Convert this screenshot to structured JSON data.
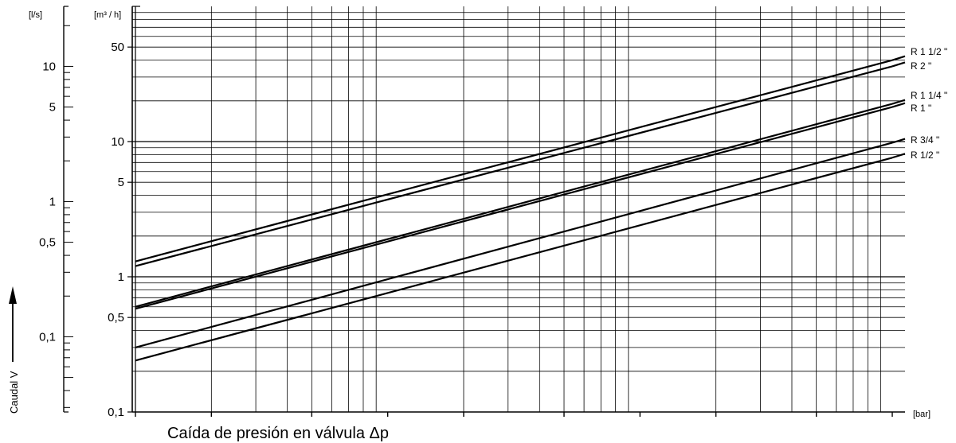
{
  "chart_data": {
    "type": "line",
    "title": "",
    "xlabel": "Caída de presión en válvula Δp",
    "ylabel": "Caudal V",
    "x_unit": "[bar]",
    "y_unit": "[m³ / h]",
    "y2_unit": "[l/s]",
    "x_scale": "log",
    "y_scale": "log",
    "xlim": [
      0.01,
      10
    ],
    "ylim": [
      0.1,
      100
    ],
    "grid": true,
    "y_ticks": [
      {
        "value": 0.1,
        "label": "0,1"
      },
      {
        "value": 0.5,
        "label": "0,5"
      },
      {
        "value": 1,
        "label": "1"
      },
      {
        "value": 5,
        "label": "5"
      },
      {
        "value": 10,
        "label": "10"
      },
      {
        "value": 50,
        "label": "50"
      }
    ],
    "y2_ticks": [
      {
        "value": 0.1,
        "label": "0,1"
      },
      {
        "value": 0.5,
        "label": "0,5"
      },
      {
        "value": 1,
        "label": "1"
      },
      {
        "value": 5,
        "label": "5"
      },
      {
        "value": 10,
        "label": "10"
      }
    ],
    "series": [
      {
        "name": "R 1 1/2 \"",
        "x": [
          0.01,
          10
        ],
        "y": [
          1.3,
          40
        ]
      },
      {
        "name": "R 2 \"",
        "x": [
          0.01,
          10
        ],
        "y": [
          1.2,
          36
        ]
      },
      {
        "name": "R 1 1/4 \"",
        "x": [
          0.01,
          10
        ],
        "y": [
          0.6,
          19
        ]
      },
      {
        "name": "R 1 \"",
        "x": [
          0.01,
          10
        ],
        "y": [
          0.58,
          18
        ]
      },
      {
        "name": "R 3/4 \"",
        "x": [
          0.01,
          10
        ],
        "y": [
          0.3,
          9.8
        ]
      },
      {
        "name": "R 1/2 \"",
        "x": [
          0.01,
          10
        ],
        "y": [
          0.24,
          7.6
        ]
      }
    ]
  }
}
